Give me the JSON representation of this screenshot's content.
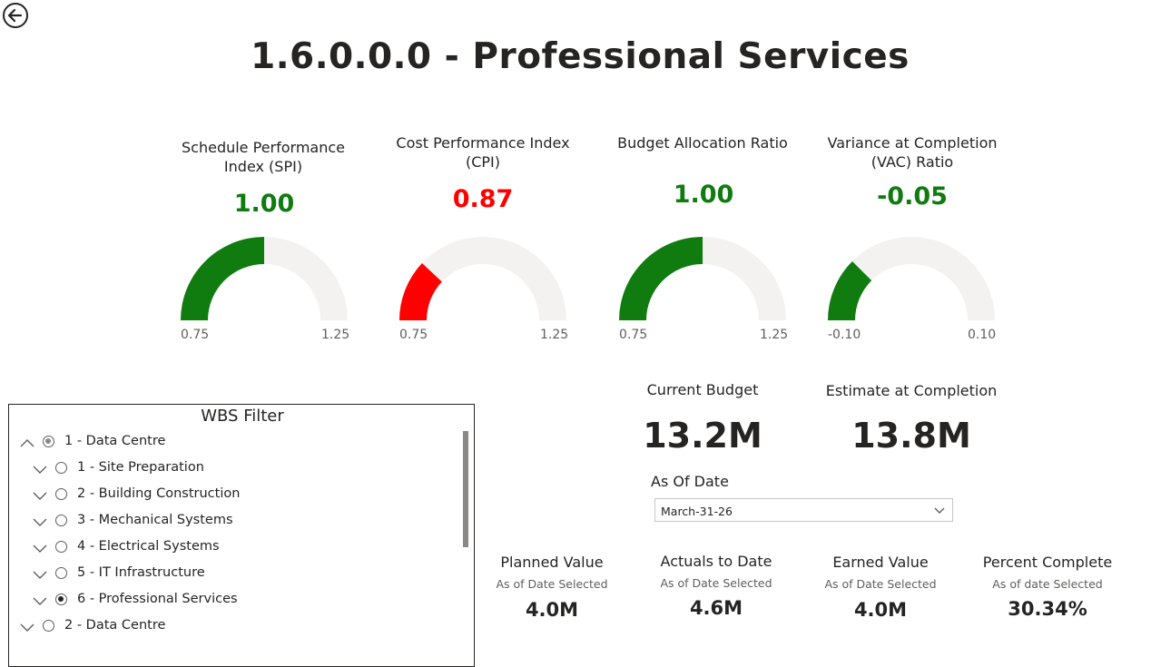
{
  "page": {
    "title": "1.6.0.0.0 - Professional Services"
  },
  "gauges": [
    {
      "title": "Schedule Performance Index (SPI)",
      "value": "1.00",
      "value_num": 1.0,
      "min": "0.75",
      "max": "1.25",
      "min_num": 0.75,
      "max_num": 1.25,
      "color": "#107c10"
    },
    {
      "title": "Cost Performance Index (CPI)",
      "value": "0.87",
      "value_num": 0.87,
      "min": "0.75",
      "max": "1.25",
      "min_num": 0.75,
      "max_num": 1.25,
      "color": "#ff0000"
    },
    {
      "title": "Budget Allocation Ratio",
      "value": "1.00",
      "value_num": 1.0,
      "min": "0.75",
      "max": "1.25",
      "min_num": 0.75,
      "max_num": 1.25,
      "color": "#107c10"
    },
    {
      "title": "Variance at Completion (VAC) Ratio",
      "value": "-0.05",
      "value_num": -0.05,
      "min": "-0.10",
      "max": "0.10",
      "min_num": -0.1,
      "max_num": 0.1,
      "color": "#107c10"
    }
  ],
  "cards": {
    "current_budget": {
      "label": "Current Budget",
      "value": "13.2M"
    },
    "estimate_at_completion": {
      "label": "Estimate at Completion",
      "value": "13.8M"
    }
  },
  "as_of_date": {
    "label": "As Of Date",
    "value": "March-31-26"
  },
  "kpis": [
    {
      "label": "Planned Value",
      "sub": "As of Date Selected",
      "value": "4.0M"
    },
    {
      "label": "Actuals to Date",
      "sub": "As of Date Selected",
      "value": "4.6M"
    },
    {
      "label": "Earned Value",
      "sub": "As of Date Selected",
      "value": "4.0M"
    },
    {
      "label": "Percent Complete",
      "sub": "As of date Selected",
      "value": "30.34%"
    }
  ],
  "wbs_filter": {
    "title": "WBS Filter",
    "items": [
      {
        "label": "1 - Data Centre",
        "level": 0,
        "expanded": true,
        "selected": "partial"
      },
      {
        "label": "1 - Site Preparation",
        "level": 1,
        "expanded": false,
        "selected": "none"
      },
      {
        "label": "2 - Building Construction",
        "level": 1,
        "expanded": false,
        "selected": "none"
      },
      {
        "label": "3 - Mechanical Systems",
        "level": 1,
        "expanded": false,
        "selected": "none"
      },
      {
        "label": "4 - Electrical Systems",
        "level": 1,
        "expanded": false,
        "selected": "none"
      },
      {
        "label": "5 - IT Infrastructure",
        "level": 1,
        "expanded": false,
        "selected": "none"
      },
      {
        "label": "6 - Professional Services",
        "level": 1,
        "expanded": false,
        "selected": "full"
      },
      {
        "label": "2 - Data Centre",
        "level": 0,
        "expanded": false,
        "selected": "none"
      }
    ]
  },
  "colors": {
    "gauge_track": "#f3f2f1",
    "good": "#107c10",
    "bad": "#ff0000"
  },
  "icons": {
    "back": "arrow-left-circle-icon",
    "dropdown": "chevron-down-icon"
  }
}
